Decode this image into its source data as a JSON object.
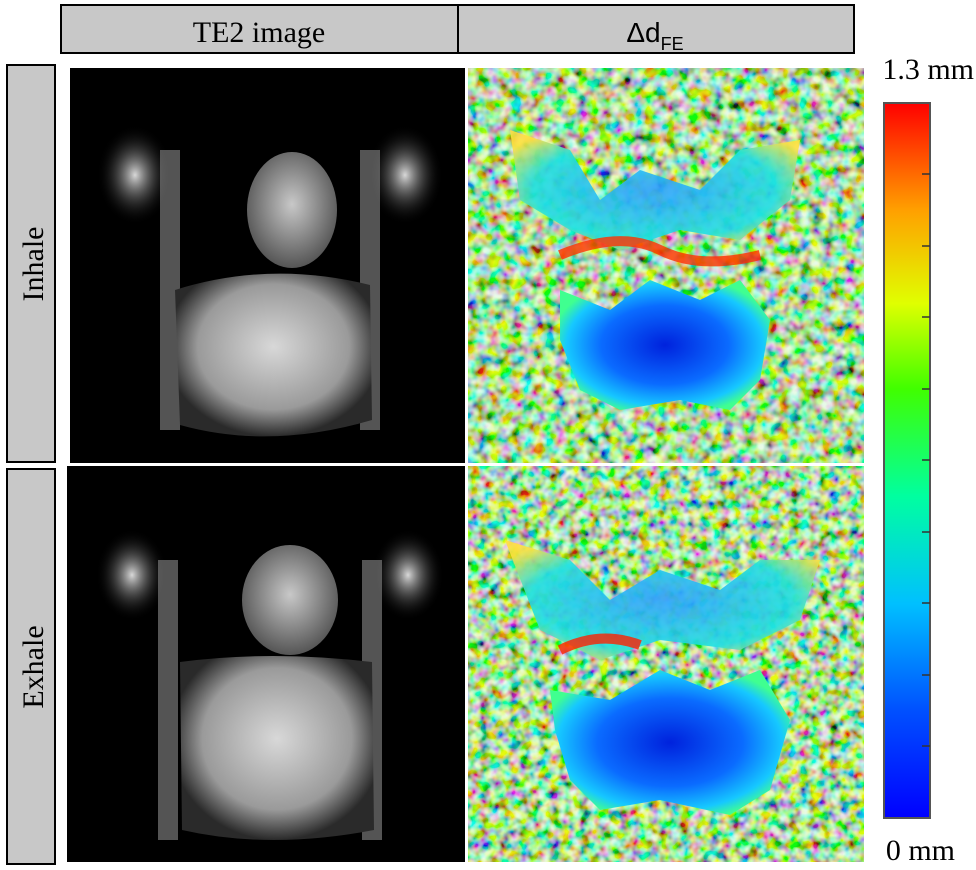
{
  "header": {
    "columns": [
      "TE2 image",
      {
        "symbol": "Δd",
        "subscript": "FE"
      }
    ]
  },
  "rows": [
    "Inhale",
    "Exhale"
  ],
  "colorbar": {
    "max_label": "1.3 mm",
    "min_label": "0 mm"
  }
}
